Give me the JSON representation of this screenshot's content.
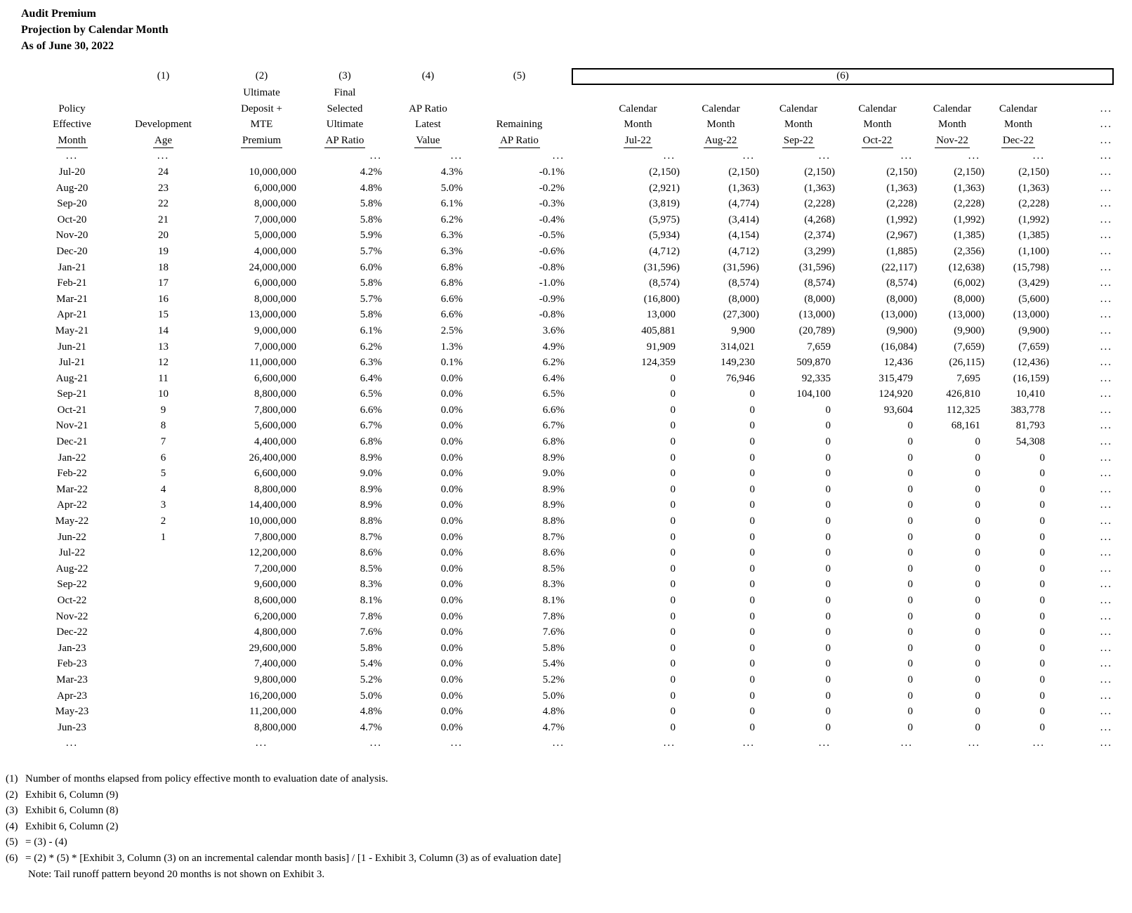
{
  "colors": {
    "text": "#000000",
    "background": "#ffffff",
    "box_border": "#000000"
  },
  "title": {
    "line1": "Audit Premium",
    "line2": "Projection by Calendar Month",
    "line3": "As of June 30, 2022"
  },
  "header": {
    "col_numbers": [
      "(1)",
      "(2)",
      "(3)",
      "(4)",
      "(5)"
    ],
    "box_label": "(6)",
    "rows": [
      [
        "",
        "",
        "Ultimate",
        "Final",
        "",
        "",
        "",
        "",
        "",
        "",
        "",
        "",
        ""
      ],
      [
        "Policy",
        "",
        "Deposit +",
        "Selected",
        "AP Ratio",
        "",
        "Calendar",
        "Calendar",
        "Calendar",
        "Calendar",
        "Calendar",
        "Calendar",
        "..."
      ],
      [
        "Effective",
        "Development",
        "MTE",
        "Ultimate",
        "Latest",
        "Remaining",
        "Month",
        "Month",
        "Month",
        "Month",
        "Month",
        "Month",
        "..."
      ],
      [
        "Month",
        "Age",
        "Premium",
        "AP Ratio",
        "Value",
        "AP Ratio",
        "Jul-22",
        "Aug-22",
        "Sep-22",
        "Oct-22",
        "Nov-22",
        "Dec-22",
        "..."
      ]
    ],
    "underline_row_index": 3
  },
  "table": {
    "columns": [
      "Policy Effective Month",
      "Development Age",
      "Ultimate Deposit + MTE Premium",
      "Final Selected Ultimate AP Ratio",
      "AP Ratio Latest Value",
      "Remaining AP Ratio",
      "Calendar Month Jul-22",
      "Calendar Month Aug-22",
      "Calendar Month Sep-22",
      "Calendar Month Oct-22",
      "Calendar Month Nov-22",
      "Calendar Month Dec-22",
      "continuation"
    ],
    "rows": [
      [
        "...",
        "...",
        "",
        "...",
        "...",
        "...",
        "...",
        "...",
        "...",
        "...",
        "...",
        "...",
        "..."
      ],
      [
        "Jul-20",
        "24",
        "10,000,000",
        "4.2%",
        "4.3%",
        "-0.1%",
        "(2,150)",
        "(2,150)",
        "(2,150)",
        "(2,150)",
        "(2,150)",
        "(2,150)",
        "..."
      ],
      [
        "Aug-20",
        "23",
        "6,000,000",
        "4.8%",
        "5.0%",
        "-0.2%",
        "(2,921)",
        "(1,363)",
        "(1,363)",
        "(1,363)",
        "(1,363)",
        "(1,363)",
        "..."
      ],
      [
        "Sep-20",
        "22",
        "8,000,000",
        "5.8%",
        "6.1%",
        "-0.3%",
        "(3,819)",
        "(4,774)",
        "(2,228)",
        "(2,228)",
        "(2,228)",
        "(2,228)",
        "..."
      ],
      [
        "Oct-20",
        "21",
        "7,000,000",
        "5.8%",
        "6.2%",
        "-0.4%",
        "(5,975)",
        "(3,414)",
        "(4,268)",
        "(1,992)",
        "(1,992)",
        "(1,992)",
        "..."
      ],
      [
        "Nov-20",
        "20",
        "5,000,000",
        "5.9%",
        "6.3%",
        "-0.5%",
        "(5,934)",
        "(4,154)",
        "(2,374)",
        "(2,967)",
        "(1,385)",
        "(1,385)",
        "..."
      ],
      [
        "Dec-20",
        "19",
        "4,000,000",
        "5.7%",
        "6.3%",
        "-0.6%",
        "(4,712)",
        "(4,712)",
        "(3,299)",
        "(1,885)",
        "(2,356)",
        "(1,100)",
        "..."
      ],
      [
        "Jan-21",
        "18",
        "24,000,000",
        "6.0%",
        "6.8%",
        "-0.8%",
        "(31,596)",
        "(31,596)",
        "(31,596)",
        "(22,117)",
        "(12,638)",
        "(15,798)",
        "..."
      ],
      [
        "Feb-21",
        "17",
        "6,000,000",
        "5.8%",
        "6.8%",
        "-1.0%",
        "(8,574)",
        "(8,574)",
        "(8,574)",
        "(8,574)",
        "(6,002)",
        "(3,429)",
        "..."
      ],
      [
        "Mar-21",
        "16",
        "8,000,000",
        "5.7%",
        "6.6%",
        "-0.9%",
        "(16,800)",
        "(8,000)",
        "(8,000)",
        "(8,000)",
        "(8,000)",
        "(5,600)",
        "..."
      ],
      [
        "Apr-21",
        "15",
        "13,000,000",
        "5.8%",
        "6.6%",
        "-0.8%",
        "13,000",
        "(27,300)",
        "(13,000)",
        "(13,000)",
        "(13,000)",
        "(13,000)",
        "..."
      ],
      [
        "May-21",
        "14",
        "9,000,000",
        "6.1%",
        "2.5%",
        "3.6%",
        "405,881",
        "9,900",
        "(20,789)",
        "(9,900)",
        "(9,900)",
        "(9,900)",
        "..."
      ],
      [
        "Jun-21",
        "13",
        "7,000,000",
        "6.2%",
        "1.3%",
        "4.9%",
        "91,909",
        "314,021",
        "7,659",
        "(16,084)",
        "(7,659)",
        "(7,659)",
        "..."
      ],
      [
        "Jul-21",
        "12",
        "11,000,000",
        "6.3%",
        "0.1%",
        "6.2%",
        "124,359",
        "149,230",
        "509,870",
        "12,436",
        "(26,115)",
        "(12,436)",
        "..."
      ],
      [
        "Aug-21",
        "11",
        "6,600,000",
        "6.4%",
        "0.0%",
        "6.4%",
        "0",
        "76,946",
        "92,335",
        "315,479",
        "7,695",
        "(16,159)",
        "..."
      ],
      [
        "Sep-21",
        "10",
        "8,800,000",
        "6.5%",
        "0.0%",
        "6.5%",
        "0",
        "0",
        "104,100",
        "124,920",
        "426,810",
        "10,410",
        "..."
      ],
      [
        "Oct-21",
        "9",
        "7,800,000",
        "6.6%",
        "0.0%",
        "6.6%",
        "0",
        "0",
        "0",
        "93,604",
        "112,325",
        "383,778",
        "..."
      ],
      [
        "Nov-21",
        "8",
        "5,600,000",
        "6.7%",
        "0.0%",
        "6.7%",
        "0",
        "0",
        "0",
        "0",
        "68,161",
        "81,793",
        "..."
      ],
      [
        "Dec-21",
        "7",
        "4,400,000",
        "6.8%",
        "0.0%",
        "6.8%",
        "0",
        "0",
        "0",
        "0",
        "0",
        "54,308",
        "..."
      ],
      [
        "Jan-22",
        "6",
        "26,400,000",
        "8.9%",
        "0.0%",
        "8.9%",
        "0",
        "0",
        "0",
        "0",
        "0",
        "0",
        "..."
      ],
      [
        "Feb-22",
        "5",
        "6,600,000",
        "9.0%",
        "0.0%",
        "9.0%",
        "0",
        "0",
        "0",
        "0",
        "0",
        "0",
        "..."
      ],
      [
        "Mar-22",
        "4",
        "8,800,000",
        "8.9%",
        "0.0%",
        "8.9%",
        "0",
        "0",
        "0",
        "0",
        "0",
        "0",
        "..."
      ],
      [
        "Apr-22",
        "3",
        "14,400,000",
        "8.9%",
        "0.0%",
        "8.9%",
        "0",
        "0",
        "0",
        "0",
        "0",
        "0",
        "..."
      ],
      [
        "May-22",
        "2",
        "10,000,000",
        "8.8%",
        "0.0%",
        "8.8%",
        "0",
        "0",
        "0",
        "0",
        "0",
        "0",
        "..."
      ],
      [
        "Jun-22",
        "1",
        "7,800,000",
        "8.7%",
        "0.0%",
        "8.7%",
        "0",
        "0",
        "0",
        "0",
        "0",
        "0",
        "..."
      ],
      [
        "Jul-22",
        "",
        "12,200,000",
        "8.6%",
        "0.0%",
        "8.6%",
        "0",
        "0",
        "0",
        "0",
        "0",
        "0",
        "..."
      ],
      [
        "Aug-22",
        "",
        "7,200,000",
        "8.5%",
        "0.0%",
        "8.5%",
        "0",
        "0",
        "0",
        "0",
        "0",
        "0",
        "..."
      ],
      [
        "Sep-22",
        "",
        "9,600,000",
        "8.3%",
        "0.0%",
        "8.3%",
        "0",
        "0",
        "0",
        "0",
        "0",
        "0",
        "..."
      ],
      [
        "Oct-22",
        "",
        "8,600,000",
        "8.1%",
        "0.0%",
        "8.1%",
        "0",
        "0",
        "0",
        "0",
        "0",
        "0",
        "..."
      ],
      [
        "Nov-22",
        "",
        "6,200,000",
        "7.8%",
        "0.0%",
        "7.8%",
        "0",
        "0",
        "0",
        "0",
        "0",
        "0",
        "..."
      ],
      [
        "Dec-22",
        "",
        "4,800,000",
        "7.6%",
        "0.0%",
        "7.6%",
        "0",
        "0",
        "0",
        "0",
        "0",
        "0",
        "..."
      ],
      [
        "Jan-23",
        "",
        "29,600,000",
        "5.8%",
        "0.0%",
        "5.8%",
        "0",
        "0",
        "0",
        "0",
        "0",
        "0",
        "..."
      ],
      [
        "Feb-23",
        "",
        "7,400,000",
        "5.4%",
        "0.0%",
        "5.4%",
        "0",
        "0",
        "0",
        "0",
        "0",
        "0",
        "..."
      ],
      [
        "Mar-23",
        "",
        "9,800,000",
        "5.2%",
        "0.0%",
        "5.2%",
        "0",
        "0",
        "0",
        "0",
        "0",
        "0",
        "..."
      ],
      [
        "Apr-23",
        "",
        "16,200,000",
        "5.0%",
        "0.0%",
        "5.0%",
        "0",
        "0",
        "0",
        "0",
        "0",
        "0",
        "..."
      ],
      [
        "May-23",
        "",
        "11,200,000",
        "4.8%",
        "0.0%",
        "4.8%",
        "0",
        "0",
        "0",
        "0",
        "0",
        "0",
        "..."
      ],
      [
        "Jun-23",
        "",
        "8,800,000",
        "4.7%",
        "0.0%",
        "4.7%",
        "0",
        "0",
        "0",
        "0",
        "0",
        "0",
        "..."
      ],
      [
        "...",
        "",
        "...",
        "...",
        "...",
        "...",
        "...",
        "...",
        "...",
        "...",
        "...",
        "...",
        "..."
      ]
    ]
  },
  "footnotes": [
    {
      "label": "(1)",
      "text": "Number of months elapsed from policy effective month to evaluation date of analysis."
    },
    {
      "label": "(2)",
      "text": "Exhibit 6, Column (9)"
    },
    {
      "label": "(3)",
      "text": "Exhibit 6, Column (8)"
    },
    {
      "label": "(4)",
      "text": "Exhibit 6, Column (2)"
    },
    {
      "label": "(5)",
      "text": "= (3) - (4)"
    },
    {
      "label": "(6)",
      "text": "= (2) * (5) * [Exhibit 3, Column (3) on an incremental calendar month basis] / [1 - Exhibit 3, Column (3) as of evaluation date]"
    }
  ],
  "note": "Note: Tail runoff pattern beyond 20 months is not shown on Exhibit 3."
}
